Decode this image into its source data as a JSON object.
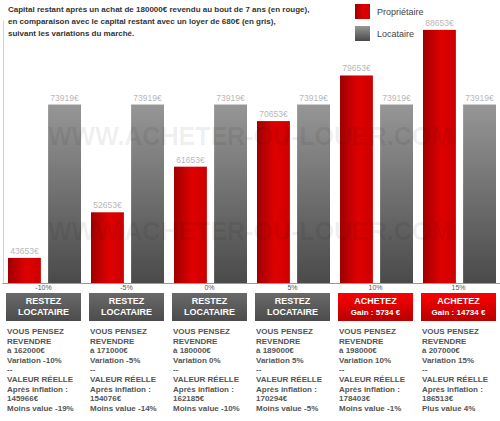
{
  "chart_data": {
    "type": "bar",
    "title": [
      "Capital restant après un achat de 180000€ revendu au bout de 7 ans (en rouge),",
      "en comparaison avec le capital restant avec un loyer de 680€ (en gris),",
      "suivant les variations du marché."
    ],
    "categories": [
      "-10%",
      "-5%",
      "0%",
      "5%",
      "10%",
      "15%"
    ],
    "series": [
      {
        "name": "Propriétaire",
        "color": "#cc0000",
        "values": [
          43653,
          52653,
          61653,
          70653,
          79653,
          88653
        ],
        "value_labels": [
          "43653€",
          "52653€",
          "61653€",
          "70653€",
          "79653€",
          "88653€"
        ]
      },
      {
        "name": "Locataire",
        "color": "#555555",
        "values": [
          73919,
          73919,
          73919,
          73919,
          73919,
          73919
        ],
        "value_labels": [
          "73919€",
          "73919€",
          "73919€",
          "73919€",
          "73919€",
          "73919€"
        ]
      }
    ],
    "ylim": [
      38700,
      90600
    ],
    "tick_labels": "x",
    "data_labels": true,
    "legend": "top-right",
    "annotations": {
      "watermark": "WWW.ACHETER-OU-LOUER.COM",
      "panels": [
        {
          "verdict": [
            "RESTEZ",
            "LOCATAIRE"
          ],
          "text": [
            "VOUS PENSEZ",
            "REVENDRE",
            "à 162000€",
            "Variation -10%",
            "--",
            "VALEUR RÉELLE",
            "Après inflation :",
            "145966€",
            "Moins value -19%"
          ]
        },
        {
          "verdict": [
            "RESTEZ",
            "LOCATAIRE"
          ],
          "text": [
            "VOUS PENSEZ",
            "REVENDRE",
            "à 171000€",
            "Variation -5%",
            "--",
            "VALEUR RÉELLE",
            "Après inflation :",
            "154076€",
            "Moins value -14%"
          ]
        },
        {
          "verdict": [
            "RESTEZ",
            "LOCATAIRE"
          ],
          "text": [
            "VOUS PENSEZ",
            "REVENDRE",
            "à 180000€",
            "Variation 0%",
            "--",
            "VALEUR RÉELLE",
            "Après inflation :",
            "162185€",
            "Moins value -10%"
          ]
        },
        {
          "verdict": [
            "RESTEZ",
            "LOCATAIRE"
          ],
          "text": [
            "VOUS PENSEZ",
            "REVENDRE",
            "à 189000€",
            "Variation 5%",
            "--",
            "VALEUR RÉELLE",
            "Après inflation :",
            "170294€",
            "Moins value -5%"
          ]
        },
        {
          "verdict": [
            "ACHETEZ",
            "Gain : 5734 €"
          ],
          "text": [
            "VOUS PENSEZ",
            "REVENDRE",
            "à 198000€",
            "Variation 10%",
            "--",
            "VALEUR RÉELLE",
            "Après inflation :",
            "178403€",
            "Moins value -1%"
          ]
        },
        {
          "verdict": [
            "ACHETEZ",
            "Gain : 14734 €"
          ],
          "text": [
            "VOUS PENSEZ",
            "REVENDRE",
            "à 207000€",
            "Variation 15%",
            "--",
            "VALEUR RÉELLE",
            "Après inflation :",
            "186513€",
            "Plus value 4%"
          ]
        }
      ]
    }
  }
}
